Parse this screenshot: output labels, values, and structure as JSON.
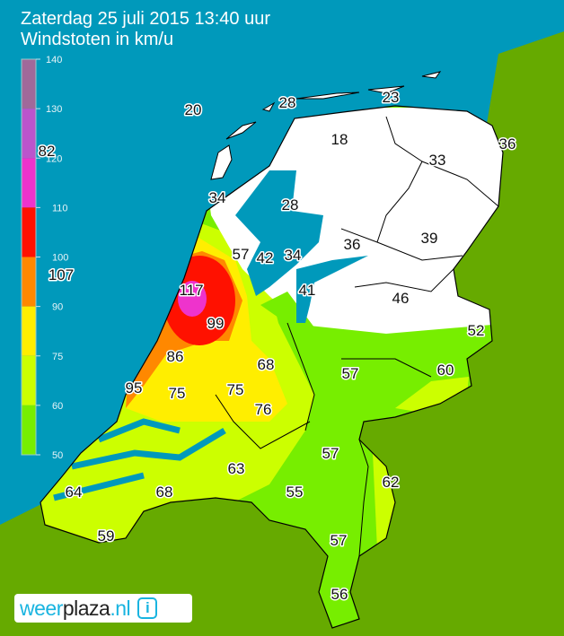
{
  "header": {
    "datetime": "Zaterdag 25 juli 2015 13:40 uur",
    "subtitle": "Windstoten in km/u"
  },
  "legend": {
    "ticks": [
      "140",
      "130",
      "120",
      "110",
      "100",
      "90",
      "75",
      "60",
      "50"
    ],
    "bands": [
      {
        "from": 130,
        "to": 140,
        "color": "#a0699a"
      },
      {
        "from": 120,
        "to": 130,
        "color": "#bb55cc"
      },
      {
        "from": 110,
        "to": 120,
        "color": "#ee33cc"
      },
      {
        "from": 100,
        "to": 110,
        "color": "#ff1100"
      },
      {
        "from": 90,
        "to": 100,
        "color": "#ff8800"
      },
      {
        "from": 75,
        "to": 90,
        "color": "#ffee00"
      },
      {
        "from": 60,
        "to": 75,
        "color": "#ccff00"
      },
      {
        "from": 50,
        "to": 60,
        "color": "#77ee00"
      }
    ]
  },
  "colors": {
    "sea": "#0099bb",
    "land": "#66aa00",
    "below_50": "#ffffff"
  },
  "station_values": [
    "20",
    "28",
    "23",
    "18",
    "36",
    "33",
    "82",
    "34",
    "28",
    "57",
    "42",
    "34",
    "36",
    "39",
    "107",
    "117",
    "41",
    "46",
    "99",
    "52",
    "86",
    "68",
    "57",
    "60",
    "95",
    "75",
    "75",
    "76",
    "57",
    "63",
    "62",
    "64",
    "68",
    "55",
    "59",
    "57",
    "56"
  ],
  "logo": {
    "part1": "weer",
    "part2": "plaza",
    "part3": ".nl",
    "icon": "info-icon",
    "icon_glyph": "i"
  }
}
